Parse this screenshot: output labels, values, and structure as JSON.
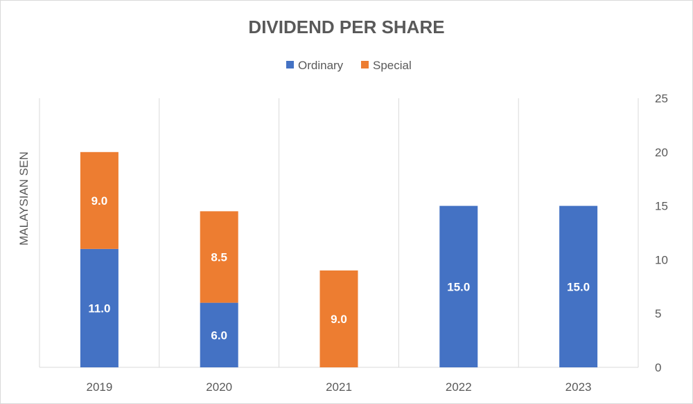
{
  "chart_data": {
    "type": "bar",
    "stacked": true,
    "title": "DIVIDEND PER SHARE",
    "ylabel": "MALAYSIAN SEN",
    "xlabel": "",
    "categories": [
      "2019",
      "2020",
      "2021",
      "2022",
      "2023"
    ],
    "series": [
      {
        "name": "Ordinary",
        "color": "#4472c4",
        "values": [
          11.0,
          6.0,
          0,
          15.0,
          15.0
        ],
        "labels": [
          "11.0",
          "6.0",
          "",
          "15.0",
          "15.0"
        ]
      },
      {
        "name": "Special",
        "color": "#ed7d31",
        "values": [
          9.0,
          8.5,
          9.0,
          0,
          0
        ],
        "labels": [
          "9.0",
          "8.5",
          "9.0",
          "",
          ""
        ]
      }
    ],
    "ylim": [
      0,
      25
    ],
    "yticks": [
      "0",
      "5",
      "10",
      "15",
      "20",
      "25"
    ],
    "ytick_values": [
      0,
      5,
      10,
      15,
      20,
      25
    ],
    "y_axis_side": "right",
    "legend_position": "top",
    "gridlines": "vertical"
  }
}
